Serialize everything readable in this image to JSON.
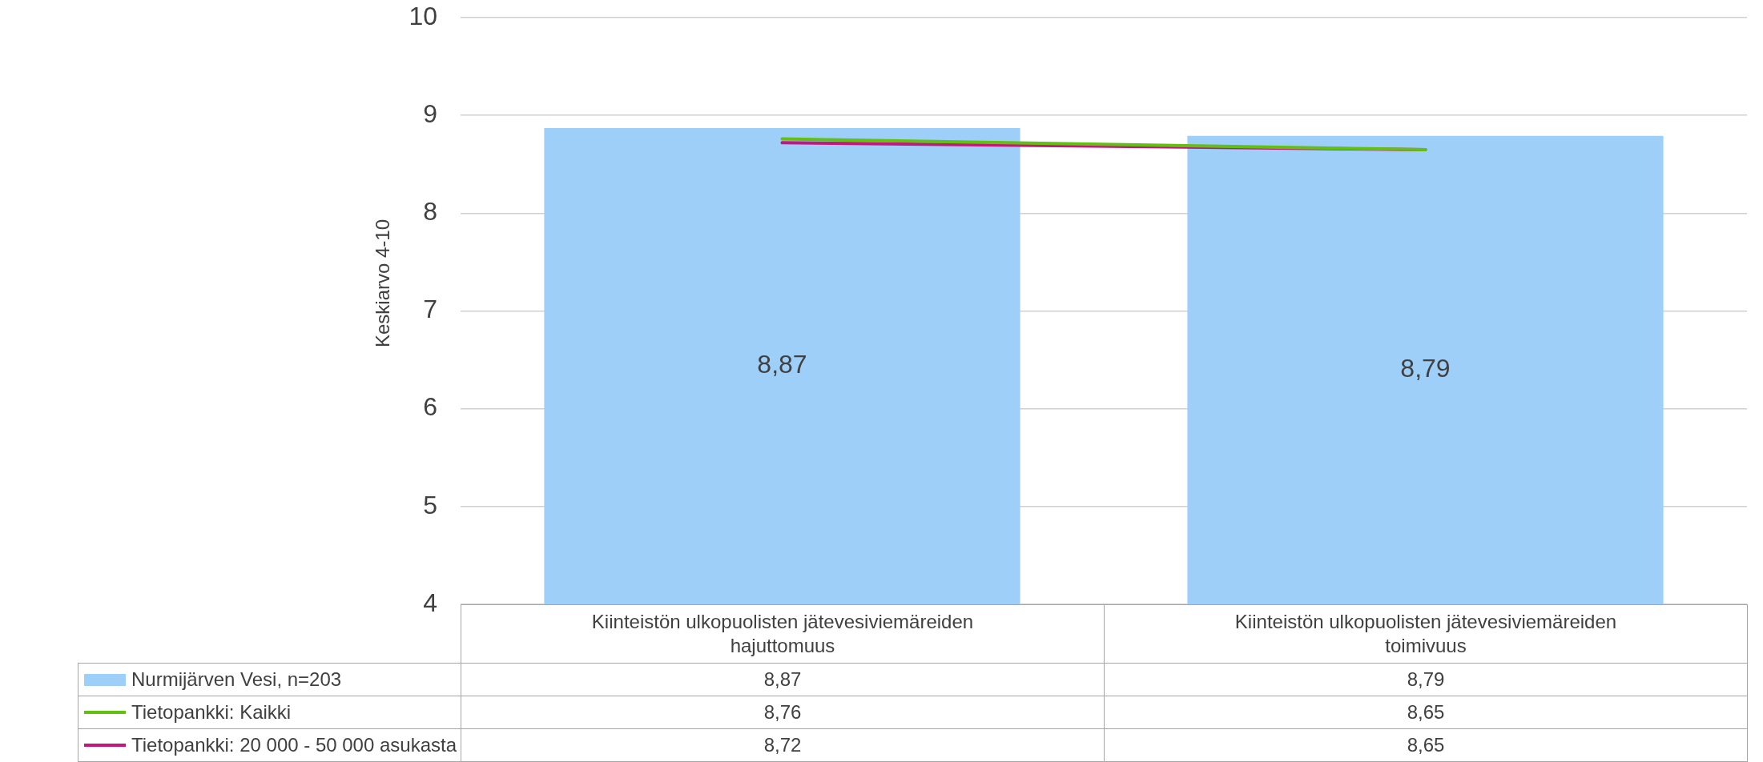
{
  "chart_data": {
    "type": "bar",
    "ylabel": "Keskiarvo 4-10",
    "categories": [
      "Kiinteistön ulkopuolisten jätevesiviemäreiden hajuttomuus",
      "Kiinteistön ulkopuolisten jätevesiviemäreiden toimivuus"
    ],
    "series": [
      {
        "name": "Nurmijärven Vesi, n=203",
        "color": "#9dcff8",
        "values": [
          8.87,
          8.79
        ],
        "value_labels": [
          "8,87",
          "8,79"
        ]
      },
      {
        "name": "Tietopankki: Kaikki",
        "type": "line",
        "color": "#62c013",
        "values": [
          8.76,
          8.65
        ],
        "value_labels": [
          "8,76",
          "8,65"
        ]
      },
      {
        "name": "Tietopankki: 20 000 - 50 000 asukasta",
        "type": "line",
        "color": "#c4167c",
        "values": [
          8.72,
          8.65
        ],
        "value_labels": [
          "8,72",
          "8,65"
        ]
      }
    ],
    "ylim": [
      4,
      10
    ],
    "yticks": [
      4,
      5,
      6,
      7,
      8,
      9,
      10
    ],
    "grid": "y",
    "legend": "bottom",
    "marker": "none",
    "line_style": "solid"
  }
}
